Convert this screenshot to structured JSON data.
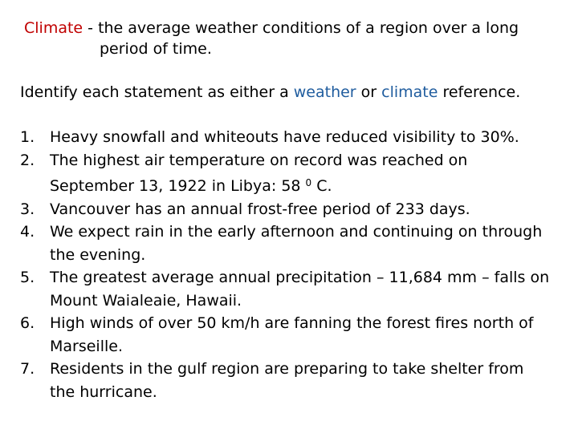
{
  "definition": {
    "term": "Climate",
    "separator": " - ",
    "line1_rest": "the average weather conditions of a region over a long",
    "line2": "period of time."
  },
  "instruction": {
    "prefix": "Identify each statement as either a ",
    "word1": "weather",
    "middle": " or ",
    "word2": "climate",
    "suffix": " reference.",
    "highlight_color": "#1f5c9e"
  },
  "term_color": "#c00000",
  "questions": [
    {
      "number": "1.",
      "lines": [
        "Heavy snowfall and whiteouts have reduced visibility to 30%."
      ]
    },
    {
      "number": "2.",
      "lines": [
        "The highest air temperature on record was reached on",
        "September 13, 1922 in Libya: 58 "
      ],
      "sup": "0",
      "tail": " C."
    },
    {
      "number": "3.",
      "lines": [
        "Vancouver has an annual frost-free period of 233 days."
      ]
    },
    {
      "number": "4.",
      "lines": [
        "We expect rain in the early afternoon and continuing on through",
        "the evening."
      ]
    },
    {
      "number": "5.",
      "lines": [
        "The greatest average annual precipitation – 11,684 mm – falls on",
        "Mount Waialeaie, Hawaii."
      ]
    },
    {
      "number": "6.",
      "lines": [
        "High winds of over 50 km/h are fanning the forest fires north of",
        "Marseille."
      ]
    },
    {
      "number": "7.",
      "lines": [
        "Residents in the gulf region are preparing to take shelter from",
        "the hurricane."
      ]
    }
  ]
}
